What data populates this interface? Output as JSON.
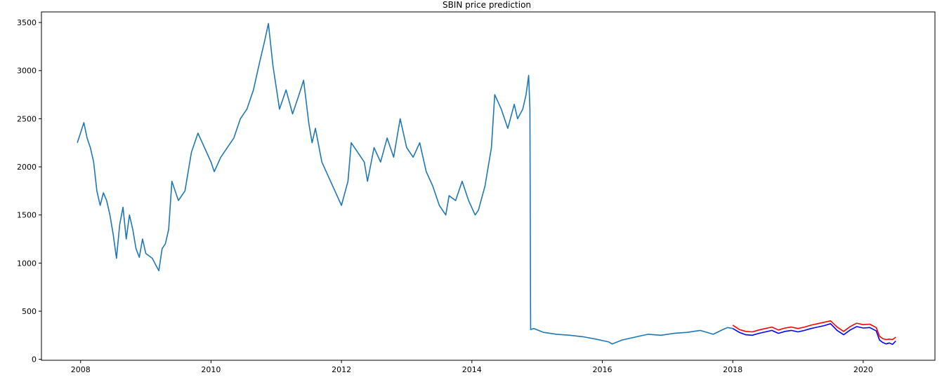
{
  "chart_data": {
    "type": "line",
    "title": "SBIN price prediction",
    "xlabel": "",
    "ylabel": "",
    "xlim": [
      2007.4,
      2021.1
    ],
    "ylim": [
      -10,
      3610
    ],
    "x_ticks": [
      2008,
      2010,
      2012,
      2014,
      2016,
      2018,
      2020
    ],
    "y_ticks": [
      0,
      500,
      1000,
      1500,
      2000,
      2500,
      3000,
      3500
    ],
    "grid": false,
    "legend": "none",
    "series": [
      {
        "color": "#1f77b4",
        "x": [
          2007.95,
          2008.05,
          2008.1,
          2008.15,
          2008.2,
          2008.25,
          2008.3,
          2008.35,
          2008.4,
          2008.45,
          2008.5,
          2008.55,
          2008.6,
          2008.65,
          2008.7,
          2008.75,
          2008.8,
          2008.85,
          2008.9,
          2008.95,
          2009.0,
          2009.1,
          2009.2,
          2009.25,
          2009.3,
          2009.35,
          2009.4,
          2009.5,
          2009.6,
          2009.7,
          2009.8,
          2009.9,
          2010.0,
          2010.05,
          2010.15,
          2010.25,
          2010.35,
          2010.45,
          2010.55,
          2010.65,
          2010.75,
          2010.82,
          2010.88,
          2010.95,
          2011.05,
          2011.15,
          2011.25,
          2011.35,
          2011.42,
          2011.5,
          2011.55,
          2011.6,
          2011.7,
          2011.8,
          2011.9,
          2012.0,
          2012.1,
          2012.15,
          2012.25,
          2012.35,
          2012.4,
          2012.5,
          2012.6,
          2012.7,
          2012.8,
          2012.9,
          2013.0,
          2013.1,
          2013.2,
          2013.3,
          2013.4,
          2013.5,
          2013.6,
          2013.65,
          2013.75,
          2013.85,
          2013.95,
          2014.05,
          2014.1,
          2014.2,
          2014.3,
          2014.35,
          2014.45,
          2014.55,
          2014.65,
          2014.7,
          2014.78,
          2014.83,
          2014.87,
          2014.89,
          2014.9,
          2014.95,
          2015.1,
          2015.3,
          2015.5,
          2015.7,
          2015.9,
          2016.1,
          2016.15,
          2016.3,
          2016.5,
          2016.7,
          2016.9,
          2017.1,
          2017.3,
          2017.5,
          2017.7,
          2017.85,
          2017.92,
          2018.0
        ],
        "y": [
          2250,
          2460,
          2300,
          2200,
          2050,
          1750,
          1600,
          1730,
          1650,
          1500,
          1300,
          1050,
          1400,
          1580,
          1250,
          1500,
          1350,
          1150,
          1060,
          1250,
          1100,
          1050,
          920,
          1150,
          1200,
          1350,
          1850,
          1650,
          1750,
          2150,
          2350,
          2200,
          2050,
          1950,
          2100,
          2200,
          2300,
          2500,
          2600,
          2800,
          3100,
          3300,
          3490,
          3050,
          2600,
          2800,
          2550,
          2750,
          2900,
          2450,
          2250,
          2400,
          2050,
          1900,
          1750,
          1600,
          1850,
          2250,
          2150,
          2050,
          1850,
          2200,
          2050,
          2300,
          2100,
          2500,
          2200,
          2100,
          2250,
          1950,
          1800,
          1600,
          1500,
          1700,
          1650,
          1850,
          1650,
          1500,
          1550,
          1800,
          2200,
          2750,
          2600,
          2400,
          2650,
          2500,
          2600,
          2750,
          2950,
          2600,
          310,
          320,
          280,
          260,
          250,
          235,
          210,
          180,
          160,
          200,
          230,
          260,
          250,
          270,
          280,
          300,
          260,
          310,
          330,
          320
        ]
      },
      {
        "color": "#0000ff",
        "x": [
          2018.0,
          2018.1,
          2018.2,
          2018.3,
          2018.4,
          2018.5,
          2018.6,
          2018.7,
          2018.8,
          2018.9,
          2019.0,
          2019.1,
          2019.2,
          2019.3,
          2019.4,
          2019.5,
          2019.6,
          2019.7,
          2019.8,
          2019.9,
          2020.0,
          2020.1,
          2020.2,
          2020.25,
          2020.3,
          2020.35,
          2020.4,
          2020.45,
          2020.5
        ],
        "y": [
          320,
          280,
          255,
          250,
          270,
          285,
          300,
          270,
          290,
          300,
          285,
          300,
          320,
          335,
          350,
          370,
          300,
          255,
          305,
          340,
          325,
          330,
          295,
          200,
          175,
          160,
          170,
          155,
          190
        ]
      },
      {
        "color": "#ff0000",
        "x": [
          2018.0,
          2018.1,
          2018.2,
          2018.3,
          2018.4,
          2018.5,
          2018.6,
          2018.7,
          2018.8,
          2018.9,
          2019.0,
          2019.1,
          2019.2,
          2019.3,
          2019.4,
          2019.5,
          2019.6,
          2019.7,
          2019.8,
          2019.9,
          2020.0,
          2020.1,
          2020.2,
          2020.25,
          2020.3,
          2020.35,
          2020.4,
          2020.45,
          2020.5
        ],
        "y": [
          355,
          310,
          290,
          285,
          305,
          320,
          335,
          305,
          325,
          335,
          320,
          335,
          355,
          370,
          385,
          400,
          335,
          290,
          340,
          375,
          360,
          365,
          330,
          240,
          215,
          205,
          210,
          205,
          230
        ]
      }
    ]
  }
}
